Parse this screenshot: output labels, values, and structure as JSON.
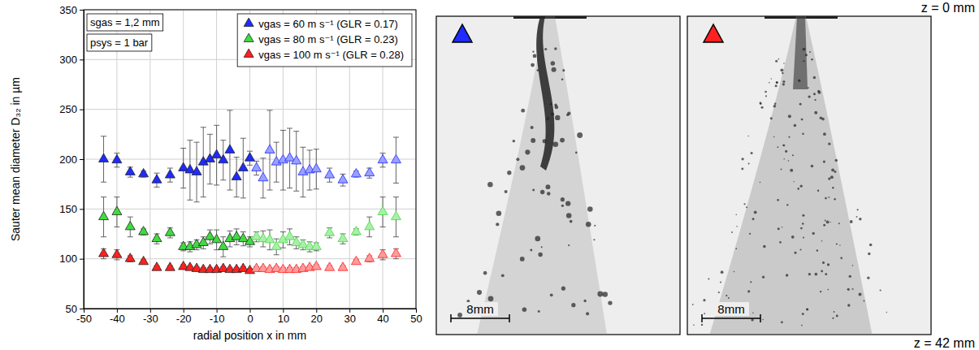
{
  "chart_data": {
    "type": "scatter",
    "xlabel": "radial position x in mm",
    "ylabel": "Sauter mean diameter D₃₂ in µm",
    "xlim": [
      -50,
      50
    ],
    "xticks": [
      -50,
      -40,
      -30,
      -20,
      -10,
      0,
      10,
      20,
      30,
      40,
      50
    ],
    "ylim": [
      50,
      350
    ],
    "yticks": [
      50,
      100,
      150,
      200,
      250,
      300,
      350
    ],
    "grid": true,
    "legend": "upper right",
    "marker": "triangle",
    "annotations": [
      "sgas = 1,2 mm",
      "psys = 1 bar"
    ],
    "x": [
      -44,
      -40,
      -36,
      -32,
      -28,
      -24,
      -20,
      -18,
      -16,
      -14,
      -12,
      -10,
      -8,
      -6,
      -4,
      -2,
      0,
      2,
      4,
      6,
      8,
      10,
      12,
      14,
      16,
      18,
      20,
      24,
      28,
      32,
      36,
      40,
      44
    ],
    "series": [
      {
        "name": "vgas = 60 m s⁻¹ (GLR = 0.17)",
        "color": "#1f2bff",
        "values": [
          200,
          199,
          187,
          185,
          179,
          184,
          191,
          189,
          187,
          197,
          200,
          204,
          199,
          209,
          182,
          191,
          201,
          191,
          181,
          209,
          197,
          199,
          201,
          198,
          187,
          189,
          190,
          184,
          179,
          185,
          186,
          199,
          199
        ],
        "errors": [
          23,
          7,
          5,
          3,
          7,
          7,
          20,
          30,
          30,
          35,
          25,
          30,
          20,
          40,
          20,
          30,
          7,
          7,
          20,
          40,
          20,
          30,
          30,
          30,
          25,
          20,
          20,
          7,
          6,
          3,
          5,
          7,
          23
        ]
      },
      {
        "name": "vgas = 80 m s⁻¹ (GLR = 0.23)",
        "color": "#3fdc3f",
        "values": [
          142,
          147,
          132,
          127,
          120,
          126,
          112,
          112,
          114,
          116,
          122,
          119,
          112,
          120,
          122,
          120,
          117,
          122,
          120,
          119,
          112,
          119,
          122,
          116,
          114,
          112,
          112,
          126,
          120,
          127,
          132,
          147,
          142
        ],
        "errors": [
          20,
          15,
          10,
          3,
          5,
          5,
          4,
          5,
          5,
          6,
          7,
          10,
          10,
          8,
          8,
          7,
          5,
          5,
          8,
          10,
          8,
          8,
          8,
          6,
          5,
          5,
          4,
          5,
          5,
          3,
          10,
          15,
          20
        ]
      },
      {
        "name": "vgas = 100 m s⁻¹ (GLR = 0.28)",
        "color": "#ff2020",
        "values": [
          105,
          104,
          100,
          97,
          91,
          91,
          92,
          91,
          90,
          89,
          89,
          89,
          90,
          89,
          89,
          90,
          88,
          90,
          90,
          89,
          90,
          89,
          89,
          89,
          90,
          91,
          92,
          91,
          91,
          97,
          100,
          104,
          105
        ],
        "errors": [
          5,
          5,
          3,
          2,
          2,
          2,
          2,
          2,
          2,
          2,
          2,
          2,
          2,
          2,
          2,
          2,
          2,
          2,
          2,
          2,
          2,
          2,
          2,
          2,
          2,
          2,
          2,
          2,
          2,
          2,
          3,
          5,
          5
        ]
      }
    ]
  },
  "photos": {
    "top_label": "z = 0 mm",
    "bottom_label": "z = 42 mm",
    "panels": [
      {
        "series": 0,
        "scale_bar": "8mm"
      },
      {
        "series": 2,
        "scale_bar": "8mm"
      }
    ]
  }
}
